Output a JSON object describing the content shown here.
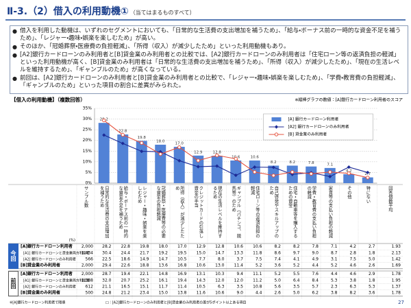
{
  "header": {
    "title": "Ⅱ-3.（2）借入の利用動機①",
    "subtitle": "（当てはまるものすべて）"
  },
  "bullets": [
    "借入を利用した動機は、いずれのセグメントにおいても、「日常的な生活費の支出増加を補うため」、「給与・ボーナス前の一時的な資金不足を補うため」、「レジャー・趣味・娯楽を楽しむため」が高い。",
    "そのほか、「冠婚葬祭・医療費の負担軽減」、「所得（収入）が減少したため」といった利用動機もあり。",
    "[A2]銀行カードローンのみ利用者と[B]貸金業のみ利用者との比較では、[A2]銀行カードローンのみ利用者は「住宅ローン等の返済負担の軽減」といった利用動機が高く、[B]貸金業のみ利用者は「日常的な生活費の支出増加を補うため」、「所得（収入）が減少したため」、「現在の生活レベルを維持するため」、「ギャンブルのため」が高くなっている。",
    "前回は、[A2]銀行カードローンのみ利用者と[B]貸金業のみ利用者との比較で、「レジャー・趣味・娯楽を楽しむため」、「学費・教育費の負担軽減」、「ギャンブルのため」といった項目の割合に差異がみられた。"
  ],
  "section_label": "【借入の利用動機】（複数回答）",
  "chart_note": "※縦棒グラフの数値：[A]銀行カードローン利用者のスコア",
  "chart_data": {
    "type": "bar",
    "categories": [
      "日常的な生活費の支出増加を補うため",
      "給与・ボーナス前の一時的な資金不足を補うため",
      "レジャー・趣味・娯楽を楽しむため",
      "冠婚葬祭・医療費等の必要な資金の負担軽減",
      "所得（収入）が減少したため",
      "クレジットカードの引落し資金の手当",
      "現在の生活レベルを維持するため",
      "ギャンブル（パチンコ、競馬等）のため",
      "住宅ローン等の返済負担の軽減",
      "自己啓発やスキルアップのため",
      "住宅・自動車等を購入するための資金",
      "学費・教育費の支払い負担の軽減",
      "家賃等の支払い負担の軽減",
      "その他",
      "特にない"
    ],
    "ylim": [
      0,
      35
    ],
    "yticks": [
      {
        "value": 0,
        "label": "0%"
      },
      {
        "value": 5,
        "label": "5%"
      },
      {
        "value": 10,
        "label": "10%"
      },
      {
        "value": 15,
        "label": "15%"
      },
      {
        "value": 20,
        "label": "20%"
      },
      {
        "value": 25,
        "label": "25%"
      },
      {
        "value": 30,
        "label": "30%"
      },
      {
        "value": 35,
        "label": "35%"
      }
    ],
    "grid": true,
    "legend": "upper right",
    "series": [
      {
        "name": "[A] 銀行カードローン利用者",
        "type": "bar",
        "color": "#5282d6",
        "values": [
          28.2,
          22.8,
          19.8,
          18.0,
          17.0,
          12.9,
          12.8,
          10.6,
          10.6,
          8.2,
          8.2,
          7.8,
          7.1,
          4.2,
          2.7
        ],
        "value_labels": [
          "28.2",
          "22.8",
          "19.8",
          "18.0",
          "17.0",
          "12.9",
          "12.8",
          "10.6",
          "10.6",
          "8.2",
          "8.2",
          "7.8",
          "7.1",
          "4.2",
          "2.7"
        ]
      },
      {
        "name": "[A2] 銀行カードローンのみ利用者",
        "type": "line",
        "color": "#1c2a96",
        "values": [
          22.5,
          18.6,
          14.9,
          14.7,
          10.5,
          7.7,
          8.0,
          3.7,
          7.5,
          7.4,
          4.1,
          4.9,
          3.1,
          7.5,
          5.0
        ]
      },
      {
        "name": "[B] 貸金業のみ利用者",
        "type": "line",
        "color": "#e5533f",
        "values": [
          29.4,
          22.6,
          18.8,
          13.6,
          16.8,
          10.6,
          13.0,
          11.4,
          5.2,
          3.6,
          5.2,
          4.4,
          5.2,
          4.6,
          2.6
        ]
      }
    ]
  },
  "table": {
    "unit": "(%)",
    "sample_header": "サンプル数",
    "avg_header": "回答個数平均",
    "groups": [
      {
        "label": "今回",
        "rows": [
          {
            "label": "[A]銀行カードローン利用者",
            "n": "2,000",
            "values": [
              "28.2",
              "22.8",
              "19.8",
              "18.0",
              "17.0",
              "12.9",
              "12.8",
              "10.6",
              "10.6",
              "8.2",
              "8.2",
              "7.8",
              "7.1",
              "4.2",
              "2.7"
            ],
            "avg": "1.93"
          },
          {
            "label": "[A1] 銀行カードローンと貸金業両方利用者",
            "n": "1,434",
            "values": [
              "30.4",
              "24.4",
              "21.7",
              "19.2",
              "19.5",
              "15.0",
              "14.7",
              "13.3",
              "11.8",
              "8.6",
              "9.7",
              "9.0",
              "8.7",
              "2.8",
              "1.8"
            ],
            "avg": "2.13"
          },
          {
            "label": "[A2] 銀行カードローンのみ利用者",
            "n": "566",
            "values": [
              "22.5",
              "18.6",
              "14.9",
              "14.7",
              "10.5",
              "7.7",
              "8.0",
              "3.7",
              "7.5",
              "7.4",
              "4.1",
              "4.9",
              "3.1",
              "7.5",
              "5.0"
            ],
            "avg": "1.42"
          },
          {
            "label": "[B]貸金業のみ利用者",
            "n": "2,000",
            "values": [
              "29.4",
              "22.6",
              "18.8",
              "13.6",
              "16.8",
              "10.6",
              "13.0",
              "11.4",
              "5.2",
              "3.6",
              "5.2",
              "4.4",
              "5.2",
              "4.6",
              "2.6"
            ],
            "avg": "1.69"
          }
        ]
      },
      {
        "label": "前回",
        "rows": [
          {
            "label": "[A]銀行カードローン利用者",
            "n": "2,000",
            "values": [
              "28.7",
              "19.4",
              "22.1",
              "14.8",
              "16.9",
              "13.1",
              "10.3",
              "9.4",
              "11.1",
              "5.2",
              "5.5",
              "7.6",
              "4.4",
              "4.6",
              "2.9"
            ],
            "avg": "1.78"
          },
          {
            "label": "[A1] 銀行カードローンと貸金業両方利用者",
            "n": "1,388",
            "values": [
              "32.0",
              "20.7",
              "25.2",
              "16.1",
              "19.4",
              "14.3",
              "12.0",
              "12.0",
              "11.2",
              "5.0",
              "6.4",
              "8.4",
              "5.3",
              "3.8",
              "1.8"
            ],
            "avg": "1.95"
          },
          {
            "label": "[A2] 銀行カードローンのみ利用者",
            "n": "612",
            "values": [
              "21.1",
              "16.5",
              "15.1",
              "11.7",
              "11.4",
              "10.5",
              "6.3",
              "3.5",
              "10.8",
              "5.6",
              "3.5",
              "5.7",
              "2.3",
              "6.3",
              "5.3"
            ],
            "avg": "1.37"
          },
          {
            "label": "[B]貸金業のみ利用者",
            "n": "500",
            "values": [
              "24.8",
              "21.2",
              "23.4",
              "15.0",
              "13.8",
              "11.6",
              "10.6",
              "9.0",
              "4.4",
              "2.6",
              "5.0",
              "6.2",
              "3.8",
              "8.2",
              "3.6"
            ],
            "avg": "1.78"
          }
        ]
      }
    ]
  },
  "footnotes": [
    "※[A]銀行カードローン利用者で降順",
    "□：[A2]銀行カードローンのみ利用者と[B]貸金業のみ利用者の差が5ポイント以上ある項目"
  ],
  "page_number": "27"
}
